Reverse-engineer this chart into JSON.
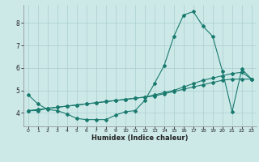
{
  "title": "",
  "xlabel": "Humidex (Indice chaleur)",
  "bg_color": "#cce9e8",
  "grid_color": "#aacfce",
  "line_color": "#1a7a6e",
  "xlim": [
    -0.5,
    23.5
  ],
  "ylim": [
    3.4,
    8.8
  ],
  "xticks": [
    0,
    1,
    2,
    3,
    4,
    5,
    6,
    7,
    8,
    9,
    10,
    11,
    12,
    13,
    14,
    15,
    16,
    17,
    18,
    19,
    20,
    21,
    22,
    23
  ],
  "yticks": [
    4,
    5,
    6,
    7,
    8
  ],
  "line1_x": [
    0,
    1,
    2,
    3,
    4,
    5,
    6,
    7,
    8,
    9,
    10,
    11,
    12,
    13,
    14,
    15,
    16,
    17,
    18,
    19,
    20,
    21,
    22,
    23
  ],
  "line1_y": [
    4.8,
    4.4,
    4.15,
    4.1,
    3.95,
    3.75,
    3.7,
    3.7,
    3.7,
    3.9,
    4.05,
    4.1,
    4.55,
    5.3,
    6.1,
    7.4,
    8.35,
    8.5,
    7.85,
    7.4,
    5.85,
    4.05,
    5.95,
    5.5
  ],
  "line2_x": [
    0,
    1,
    2,
    3,
    4,
    5,
    6,
    7,
    8,
    9,
    10,
    11,
    12,
    13,
    14,
    15,
    16,
    17,
    18,
    19,
    20,
    21,
    22,
    23
  ],
  "line2_y": [
    4.1,
    4.1,
    4.2,
    4.25,
    4.3,
    4.35,
    4.4,
    4.45,
    4.5,
    4.55,
    4.6,
    4.65,
    4.7,
    4.8,
    4.9,
    5.0,
    5.15,
    5.3,
    5.45,
    5.55,
    5.65,
    5.75,
    5.8,
    5.5
  ],
  "line3_x": [
    0,
    1,
    2,
    3,
    4,
    5,
    6,
    7,
    8,
    9,
    10,
    11,
    12,
    13,
    14,
    15,
    16,
    17,
    18,
    19,
    20,
    21,
    22,
    23
  ],
  "line3_y": [
    4.1,
    4.15,
    4.2,
    4.25,
    4.3,
    4.35,
    4.4,
    4.45,
    4.5,
    4.55,
    4.6,
    4.65,
    4.7,
    4.75,
    4.85,
    4.95,
    5.05,
    5.15,
    5.25,
    5.35,
    5.45,
    5.5,
    5.5,
    5.5
  ]
}
